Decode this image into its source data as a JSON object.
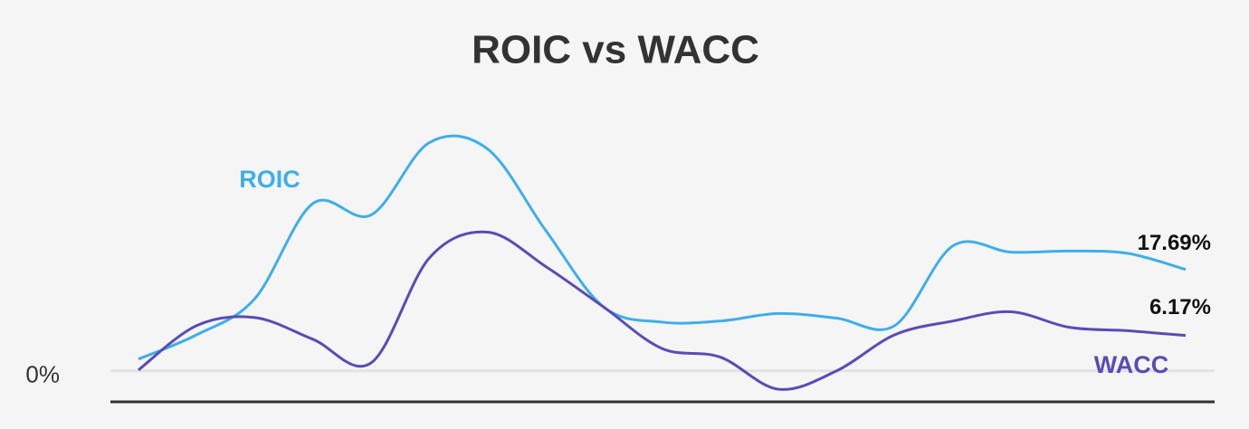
{
  "chart_data": {
    "type": "line",
    "title": "ROIC vs WACC",
    "categories": [
      null,
      null,
      null,
      null,
      null,
      null,
      null,
      null,
      null,
      null,
      null,
      null,
      null,
      null,
      null,
      null,
      null,
      null,
      null
    ],
    "series": [
      {
        "name": "ROIC",
        "color": "#3eaeea",
        "values": [
          2.05,
          6.3,
          12.6,
          29.2,
          27.2,
          39.8,
          38.7,
          24.5,
          11.1,
          8.5,
          8.7,
          10.0,
          9.2,
          7.9,
          21.8,
          20.7,
          20.9,
          20.5,
          17.69
        ],
        "value_labels": [
          null,
          null,
          null,
          null,
          null,
          null,
          null,
          null,
          null,
          null,
          null,
          null,
          null,
          null,
          null,
          null,
          null,
          null,
          "17.69%"
        ]
      },
      {
        "name": "WACC",
        "color": "#5a4cb6",
        "values": [
          0.16,
          7.9,
          9.3,
          5.5,
          1.4,
          19.7,
          24.2,
          18.2,
          11.1,
          3.9,
          2.4,
          -3.2,
          0.0,
          6.3,
          8.7,
          10.3,
          7.6,
          7.0,
          6.17
        ],
        "value_labels": [
          null,
          null,
          null,
          null,
          null,
          null,
          null,
          null,
          null,
          null,
          null,
          null,
          null,
          null,
          null,
          null,
          null,
          null,
          "6.17%"
        ]
      }
    ],
    "ylim": [
      -5.4,
      44
    ],
    "yticks": [
      {
        "value": 0,
        "label": "0%"
      }
    ],
    "grid": true
  }
}
